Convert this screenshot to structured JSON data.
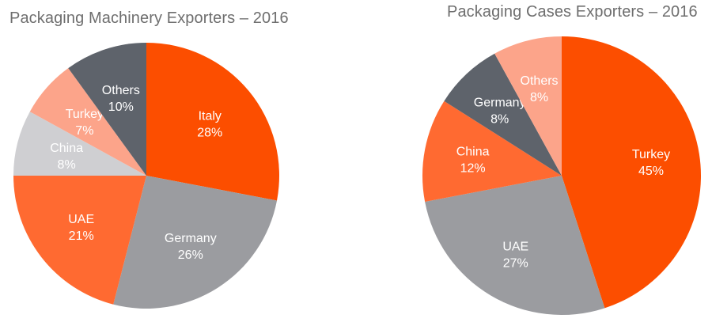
{
  "chart_data": [
    {
      "type": "pie",
      "title": "Packaging Machinery Exporters – 2016",
      "slices": [
        {
          "label": "Italy",
          "value": 28,
          "value_label": "28%",
          "color": "#fc4e00"
        },
        {
          "label": "Germany",
          "value": 26,
          "value_label": "26%",
          "color": "#9b9ca0"
        },
        {
          "label": "UAE",
          "value": 21,
          "value_label": "21%",
          "color": "#ff6a31"
        },
        {
          "label": "China",
          "value": 8,
          "value_label": "8%",
          "color": "#cfcfd2"
        },
        {
          "label": "Turkey",
          "value": 7,
          "value_label": "7%",
          "color": "#fca48a"
        },
        {
          "label": "Others",
          "value": 10,
          "value_label": "10%",
          "color": "#5e636b"
        }
      ],
      "start": "12 o'clock",
      "direction": "clockwise",
      "legend": "none"
    },
    {
      "type": "pie",
      "title": "Packaging Cases Exporters – 2016",
      "slices": [
        {
          "label": "Turkey",
          "value": 45,
          "value_label": "45%",
          "color": "#fc4e00"
        },
        {
          "label": "UAE",
          "value": 27,
          "value_label": "27%",
          "color": "#9b9ca0"
        },
        {
          "label": "China",
          "value": 12,
          "value_label": "12%",
          "color": "#ff6a31"
        },
        {
          "label": "Germany",
          "value": 8,
          "value_label": "8%",
          "color": "#5e636b"
        },
        {
          "label": "Others",
          "value": 8,
          "value_label": "8%",
          "color": "#fca48a"
        }
      ],
      "start": "12 o'clock",
      "direction": "clockwise",
      "legend": "none"
    }
  ]
}
